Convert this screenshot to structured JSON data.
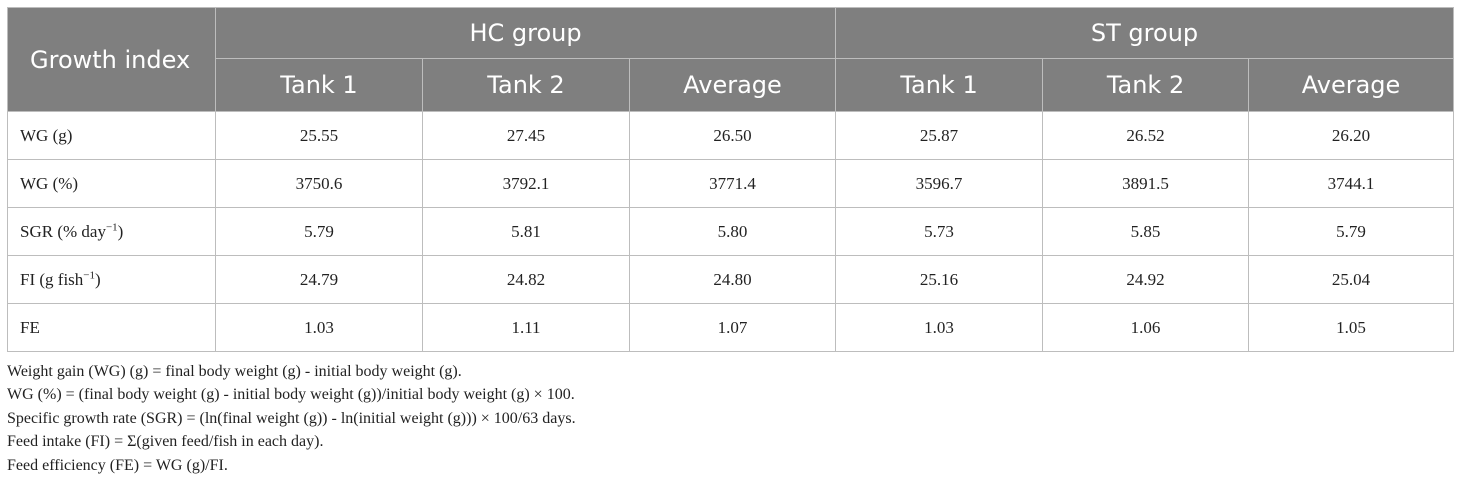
{
  "table": {
    "corner_label": "Growth index",
    "groups": [
      "HC group",
      "ST group"
    ],
    "subheaders": [
      "Tank 1",
      "Tank 2",
      "Average",
      "Tank 1",
      "Tank 2",
      "Average"
    ],
    "rows": [
      {
        "label": "WG (g)",
        "values": [
          "25.55",
          "27.45",
          "26.50",
          "25.87",
          "26.52",
          "26.20"
        ]
      },
      {
        "label": "WG (%)",
        "values": [
          "3750.6",
          "3792.1",
          "3771.4",
          "3596.7",
          "3891.5",
          "3744.1"
        ]
      },
      {
        "label_pre": "SGR (% day",
        "label_sup": "−1",
        "label_post": ")",
        "values": [
          "5.79",
          "5.81",
          "5.80",
          "5.73",
          "5.85",
          "5.79"
        ]
      },
      {
        "label_pre": "FI (g fish",
        "label_sup": "−1",
        "label_post": ")",
        "values": [
          "24.79",
          "24.82",
          "24.80",
          "25.16",
          "24.92",
          "25.04"
        ]
      },
      {
        "label": "FE",
        "values": [
          "1.03",
          "1.11",
          "1.07",
          "1.03",
          "1.06",
          "1.05"
        ]
      }
    ]
  },
  "footnotes": [
    "Weight gain (WG) (g) = final body weight (g) - initial body weight (g).",
    "WG (%) = (final body weight (g) - initial body weight (g))/initial body weight (g) × 100.",
    "Specific growth rate (SGR) = (ln(final weight (g)) - ln(initial weight (g))) × 100/63 days.",
    "Feed intake (FI) = Σ(given feed/fish in each day).",
    "Feed efficiency (FE) = WG (g)/FI."
  ]
}
